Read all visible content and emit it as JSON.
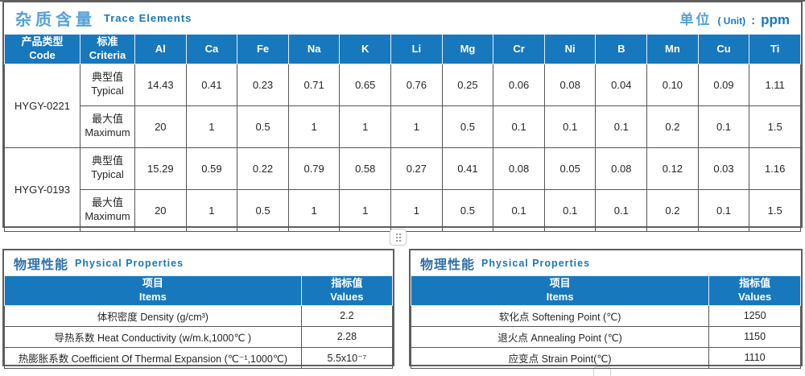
{
  "colors": {
    "header-blue": "#1878be",
    "title-light-blue": "#55a2d9",
    "title-dark-blue": "#2e6fa9",
    "cell-border": "#565656",
    "section-border": "#5f5f5f",
    "cell-text": "#262626"
  },
  "icons": {
    "drag_handle": "six-dot-grip"
  },
  "trace": {
    "title_zh": "杂质含量",
    "title_en": "Trace Elements",
    "unit_zh": "单位",
    "unit_en": "( Unit)",
    "unit_colon": ":",
    "unit_value": "ppm",
    "header": {
      "code_zh": "产品类型",
      "code_en": "Code",
      "criteria_zh": "标准",
      "criteria_en": "Criteria"
    },
    "elements": [
      "Al",
      "Ca",
      "Fe",
      "Na",
      "K",
      "Li",
      "Mg",
      "Cr",
      "Ni",
      "B",
      "Mn",
      "Cu",
      "Ti"
    ],
    "groups": [
      {
        "code": "HYGY-0221",
        "rows": [
          {
            "criteria_zh": "典型值",
            "criteria_en": "Typical",
            "values": [
              "14.43",
              "0.41",
              "0.23",
              "0.71",
              "0.65",
              "0.76",
              "0.25",
              "0.06",
              "0.08",
              "0.04",
              "0.10",
              "0.09",
              "1.11"
            ]
          },
          {
            "criteria_zh": "最大值",
            "criteria_en": "Maximum",
            "values": [
              "20",
              "1",
              "0.5",
              "1",
              "1",
              "1",
              "0.5",
              "0.1",
              "0.1",
              "0.1",
              "0.2",
              "0.1",
              "1.5"
            ]
          }
        ]
      },
      {
        "code": "HYGY-0193",
        "rows": [
          {
            "criteria_zh": "典型值",
            "criteria_en": "Typical",
            "values": [
              "15.29",
              "0.59",
              "0.22",
              "0.79",
              "0.58",
              "0.27",
              "0.41",
              "0.08",
              "0.05",
              "0.08",
              "0.12",
              "0.03",
              "1.16"
            ]
          },
          {
            "criteria_zh": "最大值",
            "criteria_en": "Maximum",
            "values": [
              "20",
              "1",
              "0.5",
              "1",
              "1",
              "1",
              "0.5",
              "0.1",
              "0.1",
              "0.1",
              "0.2",
              "0.1",
              "1.5"
            ]
          }
        ]
      }
    ]
  },
  "physical_left": {
    "title_zh": "物理性能",
    "title_en": "Physical Properties",
    "header": {
      "items_zh": "项目",
      "items_en": "Items",
      "values_zh": "指标值",
      "values_en": "Values"
    },
    "rows": [
      {
        "item": "体积密度 Density (g/cm³)",
        "value": "2.2"
      },
      {
        "item": "导热系数 Heat Conductivity (w/m.k,1000℃ )",
        "value": "2.28"
      },
      {
        "item": "热膨胀系数 Coefficient Of Thermal Expansion (℃⁻¹,1000℃)",
        "value": "5.5x10⁻⁷"
      }
    ]
  },
  "physical_right": {
    "title_zh": "物理性能",
    "title_en": "Physical Properties",
    "header": {
      "items_zh": "项目",
      "items_en": "Items",
      "values_zh": "指标值",
      "values_en": "Values"
    },
    "rows": [
      {
        "item": "软化点 Softening Point (℃)",
        "value": "1250"
      },
      {
        "item": "退火点 Annealing Point (℃)",
        "value": "1150"
      },
      {
        "item": "应变点 Strain Point(℃)",
        "value": "1110"
      }
    ]
  }
}
